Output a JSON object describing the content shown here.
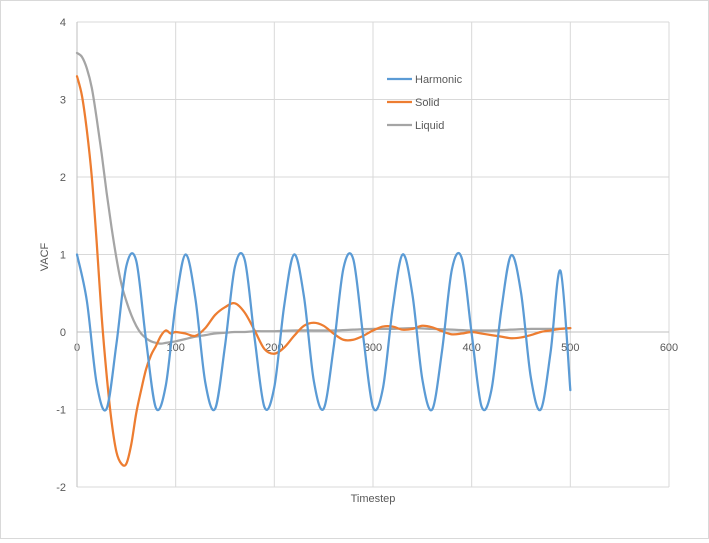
{
  "chart_data": {
    "type": "line",
    "title": "",
    "xlabel": "Timestep",
    "ylabel": "VACF",
    "xlim": [
      0,
      600
    ],
    "ylim": [
      -2,
      4
    ],
    "x_ticks": [
      0,
      100,
      200,
      300,
      400,
      500,
      600
    ],
    "y_ticks": [
      -2,
      -1,
      0,
      1,
      2,
      3,
      4
    ],
    "grid": true,
    "legend_position": "top-right",
    "series": [
      {
        "name": "Harmonic",
        "color": "#5b9bd5",
        "x": [
          0,
          10,
          20,
          30,
          40,
          50,
          60,
          70,
          80,
          90,
          100,
          110,
          120,
          130,
          140,
          150,
          160,
          170,
          180,
          190,
          200,
          210,
          220,
          230,
          240,
          250,
          260,
          270,
          280,
          290,
          300,
          310,
          320,
          330,
          340,
          350,
          360,
          370,
          380,
          390,
          400,
          410,
          420,
          430,
          440,
          450,
          460,
          470,
          480,
          490,
          500
        ],
        "y": [
          1.0,
          0.4,
          -0.67,
          -0.99,
          -0.15,
          0.85,
          0.92,
          -0.11,
          -0.98,
          -0.69,
          0.36,
          1.0,
          0.43,
          -0.65,
          -0.99,
          -0.18,
          0.84,
          0.93,
          -0.08,
          -0.97,
          -0.71,
          0.34,
          1.0,
          0.46,
          -0.63,
          -0.99,
          -0.21,
          0.82,
          0.94,
          -0.05,
          -0.97,
          -0.73,
          0.31,
          1.0,
          0.48,
          -0.61,
          -1.0,
          -0.24,
          0.81,
          0.95,
          -0.02,
          -0.96,
          -0.75,
          0.28,
          0.99,
          0.51,
          -0.59,
          -1.0,
          -0.26,
          0.79,
          -0.75
        ]
      },
      {
        "name": "Solid",
        "color": "#ed7d31",
        "x": [
          0,
          5,
          10,
          15,
          20,
          25,
          30,
          35,
          40,
          45,
          50,
          55,
          60,
          65,
          70,
          75,
          80,
          85,
          90,
          95,
          100,
          110,
          120,
          130,
          140,
          150,
          160,
          170,
          180,
          190,
          200,
          210,
          220,
          230,
          240,
          250,
          260,
          270,
          280,
          290,
          300,
          310,
          320,
          330,
          340,
          350,
          360,
          370,
          380,
          390,
          400,
          410,
          420,
          430,
          440,
          450,
          460,
          470,
          480,
          490,
          500
        ],
        "y": [
          3.3,
          3.05,
          2.6,
          2.0,
          1.15,
          0.2,
          -0.55,
          -1.15,
          -1.55,
          -1.7,
          -1.7,
          -1.45,
          -1.05,
          -0.75,
          -0.48,
          -0.3,
          -0.18,
          -0.05,
          0.02,
          -0.02,
          0.0,
          -0.02,
          -0.05,
          0.05,
          0.22,
          0.32,
          0.37,
          0.25,
          0.02,
          -0.22,
          -0.28,
          -0.2,
          -0.05,
          0.08,
          0.12,
          0.08,
          -0.02,
          -0.1,
          -0.1,
          -0.05,
          0.02,
          0.07,
          0.07,
          0.03,
          0.04,
          0.08,
          0.06,
          0.01,
          -0.03,
          -0.02,
          0.0,
          -0.02,
          -0.04,
          -0.06,
          -0.08,
          -0.07,
          -0.04,
          0.0,
          0.02,
          0.04,
          0.05
        ]
      },
      {
        "name": "Liquid",
        "color": "#a5a5a5",
        "x": [
          0,
          5,
          10,
          15,
          20,
          25,
          30,
          35,
          40,
          45,
          50,
          55,
          60,
          65,
          70,
          75,
          80,
          85,
          90,
          95,
          100,
          110,
          120,
          130,
          140,
          150,
          160,
          170,
          180,
          190,
          200,
          220,
          240,
          260,
          280,
          300,
          320,
          340,
          360,
          380,
          400,
          420,
          440,
          460,
          480,
          500
        ],
        "y": [
          3.6,
          3.55,
          3.4,
          3.15,
          2.75,
          2.3,
          1.8,
          1.35,
          0.95,
          0.62,
          0.4,
          0.22,
          0.08,
          -0.02,
          -0.08,
          -0.12,
          -0.14,
          -0.15,
          -0.14,
          -0.13,
          -0.12,
          -0.09,
          -0.06,
          -0.04,
          -0.02,
          -0.01,
          0.0,
          0.0,
          0.01,
          0.01,
          0.01,
          0.02,
          0.02,
          0.02,
          0.03,
          0.04,
          0.04,
          0.05,
          0.04,
          0.03,
          0.02,
          0.02,
          0.03,
          0.04,
          0.04,
          0.05
        ]
      }
    ]
  }
}
